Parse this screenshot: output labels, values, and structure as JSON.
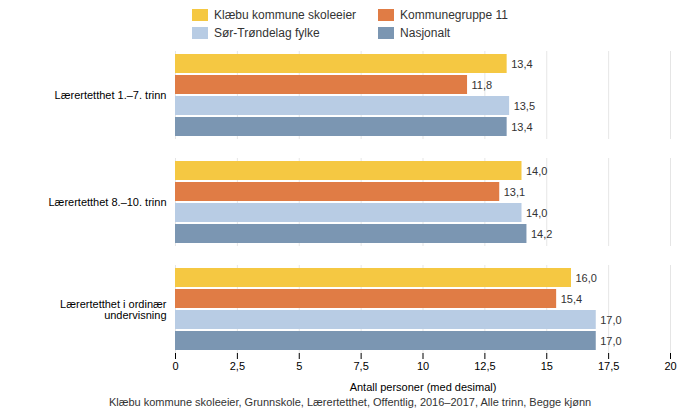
{
  "chart_data": {
    "type": "bar",
    "orientation": "horizontal",
    "categories": [
      "Lærertetthet 1.–7. trinn",
      "Lærertetthet 8.–10. trinn",
      "Lærertetthet i ordinær\nundervisning"
    ],
    "series": [
      {
        "name": "Klæbu kommune skoleeier",
        "color": "#F5C842",
        "values": [
          13.4,
          14.0,
          16.0
        ],
        "value_labels": [
          "13,4",
          "14,0",
          "16,0"
        ]
      },
      {
        "name": "Kommunegruppe 11",
        "color": "#E07C45",
        "values": [
          11.8,
          13.1,
          15.4
        ],
        "value_labels": [
          "11,8",
          "13,1",
          "15,4"
        ]
      },
      {
        "name": "Sør-Trøndelag fylke",
        "color": "#B8CCE4",
        "values": [
          13.5,
          14.0,
          17.0
        ],
        "value_labels": [
          "13,5",
          "14,0",
          "17,0"
        ]
      },
      {
        "name": "Nasjonalt",
        "color": "#7B96B2",
        "values": [
          13.4,
          14.2,
          17.0
        ],
        "value_labels": [
          "13,4",
          "14,2",
          "17,0"
        ]
      }
    ],
    "xlabel": "Antall personer (med desimal)",
    "xlim": [
      0,
      20
    ],
    "xticks": [
      0,
      {
        "value": 2.5,
        "label": "2,5"
      },
      5,
      {
        "value": 7.5,
        "label": "7,5"
      },
      10,
      {
        "value": 12.5,
        "label": "12,5"
      },
      15,
      {
        "value": 17.5,
        "label": "17,5"
      },
      20
    ],
    "grid": true,
    "legend": "top",
    "data_labels": true,
    "caption": "Klæbu kommune skoleeier, Grunnskole, Lærertetthet, Offentlig, 2016–2017, Alle trinn, Begge kjønn"
  }
}
